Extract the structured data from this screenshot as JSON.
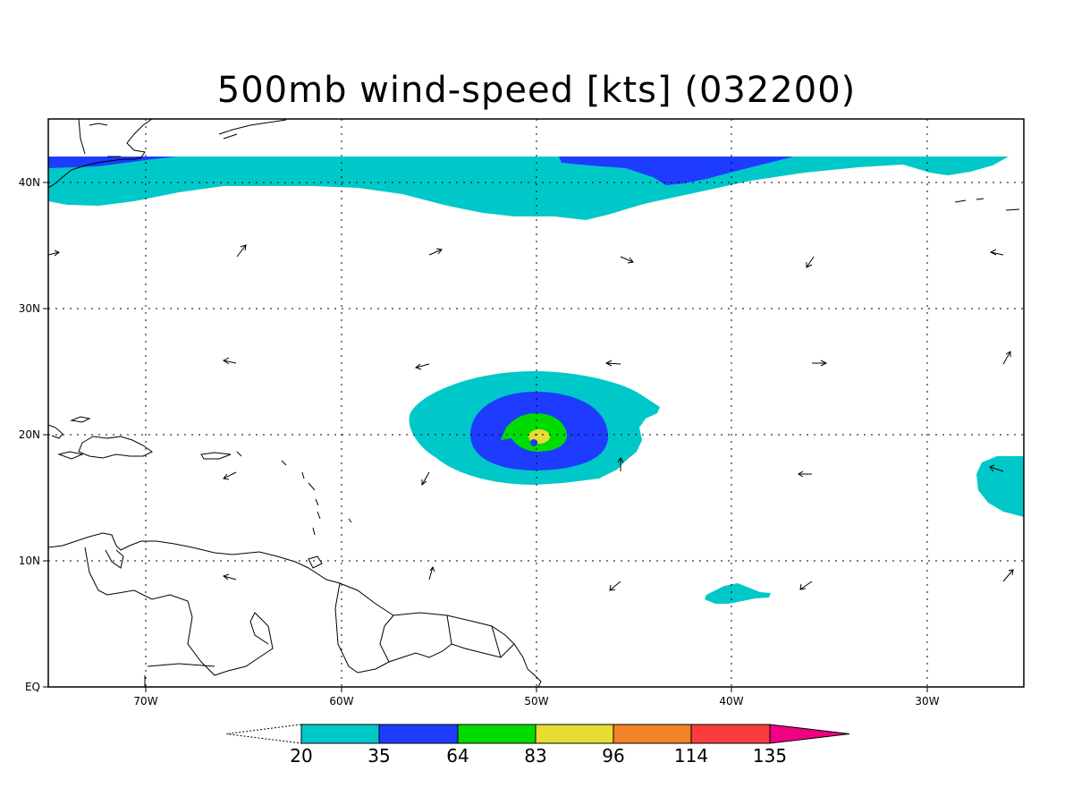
{
  "title": "500mb wind-speed [kts] (032200)",
  "map": {
    "lon_range": [
      -75,
      -25
    ],
    "lat_range": [
      0,
      45
    ],
    "x_ticks": [
      {
        "lon": -70,
        "label": "70W"
      },
      {
        "lon": -60,
        "label": "60W"
      },
      {
        "lon": -50,
        "label": "50W"
      },
      {
        "lon": -40,
        "label": "40W"
      },
      {
        "lon": -30,
        "label": "30W"
      }
    ],
    "y_ticks": [
      {
        "lat": 0,
        "label": "EQ"
      },
      {
        "lat": 10,
        "label": "10N"
      },
      {
        "lat": 20,
        "label": "20N"
      },
      {
        "lat": 30,
        "label": "30N"
      },
      {
        "lat": 40,
        "label": "40N"
      }
    ],
    "grid_lines": "dotted"
  },
  "colorbar": {
    "levels": [
      "20",
      "35",
      "64",
      "83",
      "96",
      "114",
      "135"
    ],
    "colors": [
      "#00c8c8",
      "#1e3cff",
      "#00dc00",
      "#e6dc32",
      "#f08228",
      "#fa3c3c",
      "#f00082"
    ]
  }
}
